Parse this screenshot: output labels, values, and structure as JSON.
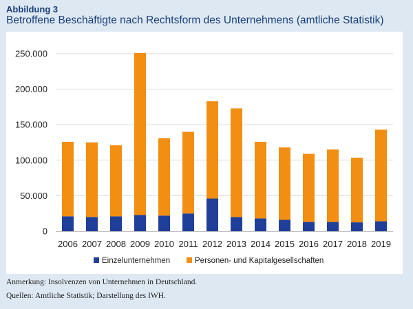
{
  "figure": {
    "label": "Abbildung 3",
    "title": "Betroffene Beschäftigte nach Rechtsform des Unternehmens (amtliche Statistik)"
  },
  "notes": {
    "remark": "Anmerkung: Insolvenzen von Unternehmen in Deutschland.",
    "sources": "Quellen: Amtliche Statistik; Darstellung des IWH."
  },
  "colors": {
    "background": "#dde8f3",
    "panel": "#ffffff",
    "series1": "#1f3f99",
    "series2": "#f28e12",
    "grid": "#d9d9d9",
    "title": "#1a3f7a"
  },
  "chart_data": {
    "type": "bar",
    "stacked": true,
    "categories": [
      "2006",
      "2007",
      "2008",
      "2009",
      "2010",
      "2011",
      "2012",
      "2013",
      "2014",
      "2015",
      "2016",
      "2017",
      "2018",
      "2019"
    ],
    "series": [
      {
        "name": "Einzelunternehmen",
        "color": "#1f3f99",
        "values": [
          21000,
          20000,
          21000,
          23000,
          22000,
          25000,
          46000,
          20000,
          18000,
          16000,
          13000,
          13000,
          12500,
          14000
        ]
      },
      {
        "name": "Personen- und Kapitalgesellschaften",
        "color": "#f28e12",
        "values": [
          105000,
          105000,
          100000,
          228000,
          109000,
          115000,
          137000,
          153000,
          108000,
          102000,
          96000,
          102000,
          91000,
          129000
        ]
      }
    ],
    "ylim": [
      0,
      250000
    ],
    "yticks": [
      0,
      50000,
      100000,
      150000,
      200000,
      250000
    ],
    "ytick_labels": [
      "0",
      "50.000",
      "100.000",
      "150.000",
      "200.000",
      "250.000"
    ],
    "grid": true,
    "legend_position": "bottom"
  }
}
